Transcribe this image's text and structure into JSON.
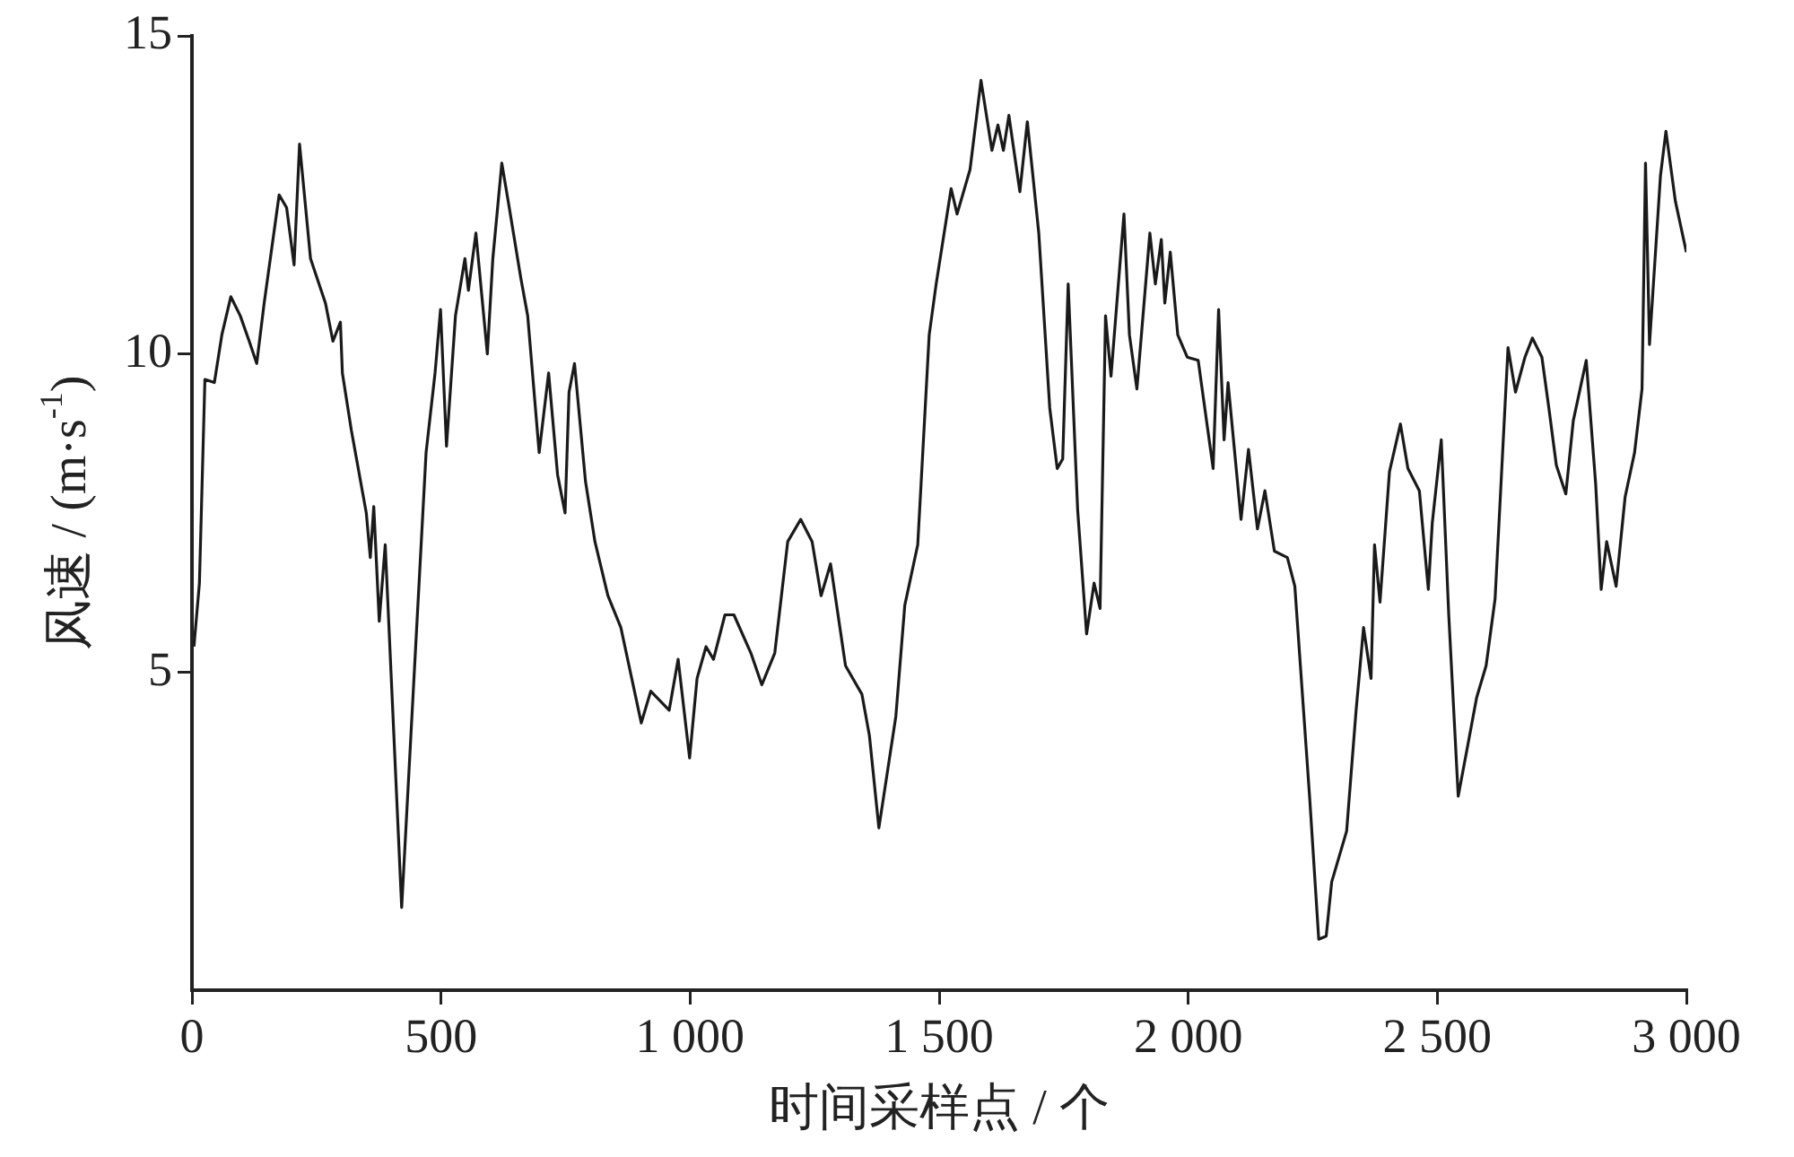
{
  "chart_data": {
    "type": "line",
    "xlabel": "时间采样点 / 个",
    "ylabel": "风速 / (m·s$^{-1}$)",
    "xlim": [
      0,
      3000
    ],
    "ylim": [
      0,
      15
    ],
    "xticks": [
      0,
      500,
      {
        "value": 1000,
        "label": "1 000"
      },
      {
        "value": 1500,
        "label": "1 500"
      },
      {
        "value": 2000,
        "label": "2 000"
      },
      {
        "value": 2500,
        "label": "2 500"
      },
      {
        "value": 3000,
        "label": "3 000"
      }
    ],
    "yticks": [
      5,
      10,
      15
    ],
    "grid": false,
    "legend": false,
    "marker": "none",
    "line_style": "solid",
    "series": [
      {
        "color": "#1a1a1a",
        "x": [
          4,
          15,
          26,
          45,
          60,
          78,
          97,
          115,
          130,
          145,
          175,
          190,
          205,
          216,
          238,
          268,
          283,
          298,
          302,
          320,
          350,
          358,
          365,
          376,
          388,
          421,
          470,
          488,
          499,
          511,
          529,
          548,
          555,
          570,
          593,
          604,
          622,
          637,
          660,
          674,
          697,
          716,
          734,
          749,
          757,
          768,
          790,
          809,
          835,
          861,
          902,
          921,
          958,
          976,
          999,
          1014,
          1032,
          1047,
          1070,
          1088,
          1122,
          1144,
          1170,
          1196,
          1222,
          1245,
          1263,
          1282,
          1312,
          1345,
          1360,
          1379,
          1413,
          1431,
          1457,
          1480,
          1494,
          1524,
          1536,
          1562,
          1584,
          1606,
          1618,
          1629,
          1640,
          1662,
          1677,
          1700,
          1722,
          1737,
          1748,
          1759,
          1778,
          1796,
          1811,
          1823,
          1834,
          1845,
          1871,
          1882,
          1897,
          1923,
          1934,
          1946,
          1953,
          1964,
          1979,
          1998,
          2020,
          2050,
          2061,
          2072,
          2080,
          2106,
          2121,
          2139,
          2154,
          2173,
          2199,
          2214,
          2244,
          2262,
          2277,
          2288,
          2318,
          2337,
          2352,
          2367,
          2374,
          2385,
          2404,
          2426,
          2441,
          2464,
          2482,
          2490,
          2508,
          2523,
          2542,
          2560,
          2579,
          2598,
          2616,
          2642,
          2657,
          2676,
          2691,
          2710,
          2724,
          2739,
          2758,
          2773,
          2799,
          2818,
          2829,
          2840,
          2859,
          2877,
          2896,
          2911,
          2918,
          2926,
          2948,
          2959,
          2978,
          3000
        ],
        "values": [
          5.4,
          6.4,
          9.6,
          9.55,
          10.3,
          10.9,
          10.6,
          10.2,
          9.85,
          10.8,
          12.5,
          12.3,
          11.4,
          13.3,
          11.5,
          10.8,
          10.2,
          10.5,
          9.7,
          8.8,
          7.5,
          6.8,
          7.6,
          5.8,
          7.0,
          1.3,
          8.45,
          9.7,
          10.7,
          8.55,
          10.6,
          11.5,
          11.0,
          11.9,
          10.0,
          11.5,
          13.0,
          12.3,
          11.2,
          10.6,
          8.45,
          9.7,
          8.1,
          7.5,
          9.4,
          9.85,
          8.0,
          7.05,
          6.2,
          5.7,
          4.2,
          4.7,
          4.4,
          5.2,
          3.65,
          4.9,
          5.4,
          5.2,
          5.9,
          5.9,
          5.3,
          4.8,
          5.3,
          7.05,
          7.4,
          7.05,
          6.2,
          6.7,
          5.1,
          4.65,
          4.0,
          2.55,
          4.3,
          6.05,
          7.0,
          10.3,
          11.1,
          12.6,
          12.2,
          12.9,
          14.3,
          13.2,
          13.6,
          13.2,
          13.75,
          12.55,
          13.65,
          11.9,
          9.15,
          8.2,
          8.35,
          11.1,
          7.55,
          5.6,
          6.4,
          6.0,
          10.6,
          9.65,
          12.2,
          10.3,
          9.45,
          11.9,
          11.1,
          11.8,
          10.8,
          11.6,
          10.3,
          9.95,
          9.9,
          8.2,
          10.7,
          8.65,
          9.55,
          7.4,
          8.5,
          7.25,
          7.85,
          6.9,
          6.8,
          6.35,
          3.0,
          0.8,
          0.85,
          1.7,
          2.5,
          4.4,
          5.7,
          4.9,
          7.0,
          6.1,
          8.15,
          8.9,
          8.2,
          7.85,
          6.3,
          7.35,
          8.65,
          5.9,
          3.05,
          3.8,
          4.6,
          5.1,
          6.15,
          10.1,
          9.4,
          9.95,
          10.25,
          9.95,
          9.15,
          8.25,
          7.8,
          8.95,
          9.9,
          7.95,
          6.3,
          7.05,
          6.35,
          7.75,
          8.45,
          9.45,
          13.0,
          10.15,
          12.8,
          13.5,
          12.4,
          11.6
        ]
      }
    ]
  }
}
